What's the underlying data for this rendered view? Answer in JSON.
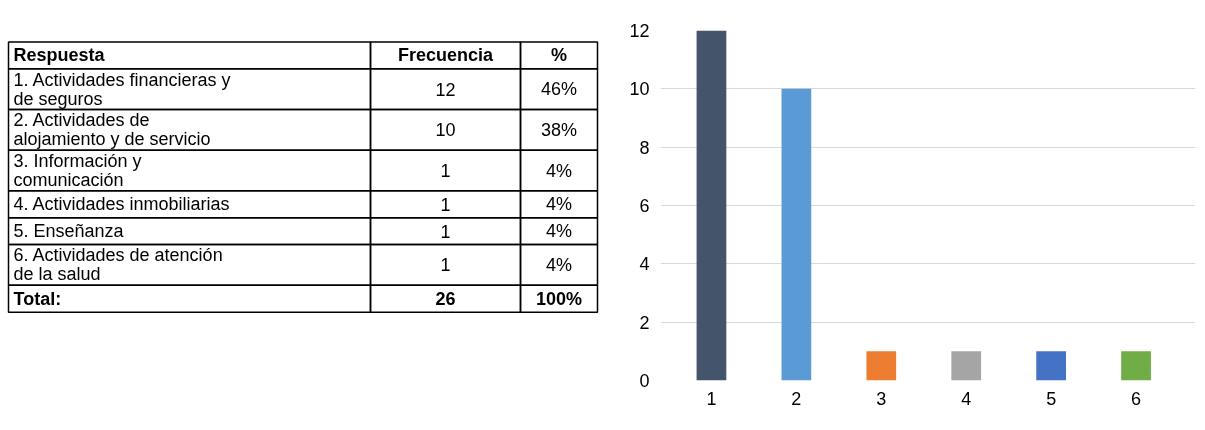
{
  "chart_data": [
    {
      "type": "other",
      "annotations": [
        "Respuesta",
        "Frecuencia",
        "%",
        "1. Actividades financieras y\nde seguros",
        "12",
        "46%",
        "2. Actividades de\nalojamiento y de servicio",
        "10",
        "38%",
        "3. Información y\ncomunicación",
        "1",
        "4%",
        "4. Actividades inmobiliarias",
        "1",
        "4%",
        "5. Enseñanza",
        "1",
        "4%",
        "6. Actividades de atención\nde la salud",
        "1",
        "4%",
        "Total:",
        "26",
        "100%"
      ]
    },
    {
      "type": "bar",
      "categories": [
        "1",
        "2",
        "3",
        "4",
        "5",
        "6"
      ],
      "values": [
        12,
        10,
        1,
        1,
        1,
        1
      ],
      "colors": [
        "#44546a",
        "#5b9bd5",
        "#ed7d31",
        "#a5a5a5",
        "#4472c4",
        "#70ad47"
      ],
      "ylim": [
        0,
        12
      ],
      "yticks": [
        0,
        2,
        4,
        6,
        8,
        10,
        12
      ],
      "grid": "y"
    }
  ]
}
